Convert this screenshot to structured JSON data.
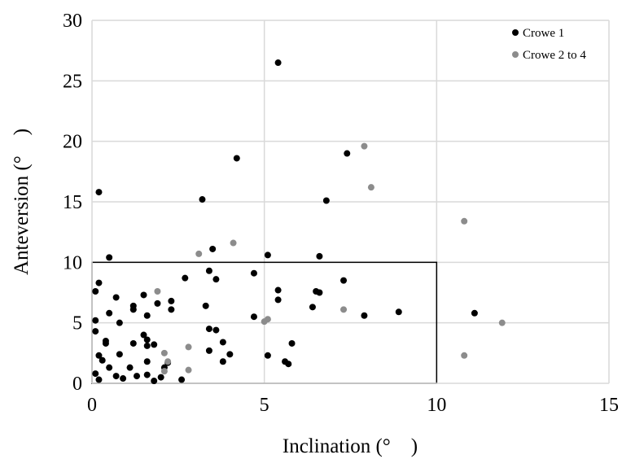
{
  "chart_data": {
    "type": "scatter",
    "title": "",
    "xlabel": "Inclination (°　)",
    "ylabel": "Anteversion (°　)",
    "xlim": [
      0,
      15
    ],
    "ylim": [
      0,
      30
    ],
    "xticks": [
      "0",
      "5",
      "10",
      "15"
    ],
    "yticks": [
      "0",
      "5",
      "10",
      "15",
      "20",
      "25",
      "30"
    ],
    "grid": true,
    "legend_position": "top-right",
    "reference_box": {
      "x": [
        0,
        10
      ],
      "y": [
        0,
        10
      ]
    },
    "colors": {
      "crowe1": "#000000",
      "crowe2to4": "#8c8c8c"
    },
    "series": [
      {
        "name": "Crowe 1",
        "color": "#000000",
        "points": [
          [
            0.2,
            15.8
          ],
          [
            0.1,
            7.6
          ],
          [
            0.2,
            8.3
          ],
          [
            0.1,
            5.2
          ],
          [
            0.1,
            4.3
          ],
          [
            0.2,
            2.3
          ],
          [
            0.3,
            1.9
          ],
          [
            0.1,
            0.8
          ],
          [
            0.2,
            0.3
          ],
          [
            0.5,
            10.4
          ],
          [
            0.5,
            5.8
          ],
          [
            0.4,
            3.5
          ],
          [
            0.4,
            3.3
          ],
          [
            0.5,
            1.3
          ],
          [
            0.7,
            7.1
          ],
          [
            0.8,
            5.0
          ],
          [
            0.8,
            2.4
          ],
          [
            0.7,
            0.6
          ],
          [
            0.9,
            0.4
          ],
          [
            1.2,
            6.4
          ],
          [
            1.2,
            6.1
          ],
          [
            1.5,
            7.3
          ],
          [
            1.5,
            4.0
          ],
          [
            1.6,
            5.6
          ],
          [
            1.6,
            3.6
          ],
          [
            1.2,
            3.3
          ],
          [
            1.6,
            3.1
          ],
          [
            1.6,
            1.8
          ],
          [
            1.1,
            1.3
          ],
          [
            1.3,
            0.6
          ],
          [
            1.6,
            0.7
          ],
          [
            1.8,
            0.2
          ],
          [
            1.8,
            3.2
          ],
          [
            1.9,
            6.6
          ],
          [
            2.0,
            0.5
          ],
          [
            2.1,
            1.3
          ],
          [
            2.2,
            1.7
          ],
          [
            2.3,
            6.8
          ],
          [
            2.3,
            6.1
          ],
          [
            2.6,
            0.3
          ],
          [
            2.7,
            8.7
          ],
          [
            3.2,
            15.2
          ],
          [
            3.3,
            6.4
          ],
          [
            3.4,
            9.3
          ],
          [
            3.4,
            4.5
          ],
          [
            3.4,
            2.7
          ],
          [
            3.5,
            11.1
          ],
          [
            3.6,
            8.6
          ],
          [
            3.6,
            4.4
          ],
          [
            3.8,
            3.4
          ],
          [
            3.8,
            1.8
          ],
          [
            4.0,
            2.4
          ],
          [
            4.2,
            18.6
          ],
          [
            4.7,
            9.1
          ],
          [
            4.7,
            5.5
          ],
          [
            5.1,
            10.6
          ],
          [
            5.1,
            2.3
          ],
          [
            5.4,
            26.5
          ],
          [
            5.4,
            7.7
          ],
          [
            5.4,
            6.9
          ],
          [
            5.6,
            1.8
          ],
          [
            5.7,
            1.6
          ],
          [
            5.8,
            3.3
          ],
          [
            6.4,
            6.3
          ],
          [
            6.5,
            7.6
          ],
          [
            6.6,
            7.5
          ],
          [
            6.6,
            10.5
          ],
          [
            6.8,
            15.1
          ],
          [
            7.3,
            8.5
          ],
          [
            7.4,
            19.0
          ],
          [
            7.9,
            5.6
          ],
          [
            8.9,
            5.9
          ],
          [
            11.1,
            5.8
          ]
        ]
      },
      {
        "name": "Crowe 2 to 4",
        "color": "#8c8c8c",
        "points": [
          [
            1.9,
            7.6
          ],
          [
            2.1,
            2.5
          ],
          [
            2.2,
            1.8
          ],
          [
            2.1,
            1.0
          ],
          [
            2.8,
            3.0
          ],
          [
            2.8,
            1.1
          ],
          [
            3.1,
            10.7
          ],
          [
            4.1,
            11.6
          ],
          [
            5.0,
            5.1
          ],
          [
            5.1,
            5.3
          ],
          [
            7.3,
            6.1
          ],
          [
            7.9,
            19.6
          ],
          [
            8.1,
            16.2
          ],
          [
            10.8,
            13.4
          ],
          [
            11.9,
            5.0
          ],
          [
            10.8,
            2.3
          ]
        ]
      }
    ]
  }
}
